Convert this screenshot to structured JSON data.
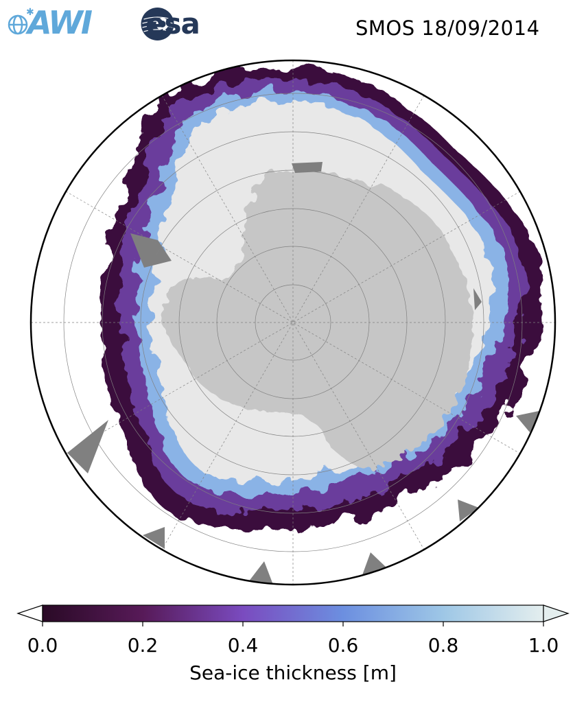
{
  "header": {
    "title": "SMOS 18/09/2014",
    "logo_awi_text": "AWI",
    "logo_esa_text": "esa"
  },
  "map": {
    "projection": "south-polar-stereographic",
    "colors": {
      "land": "#c6c6c6",
      "ice_shelf": "#7f7f7f",
      "thick_ice": "#e8e8e8",
      "outline": "#000000",
      "grid": "#808080"
    }
  },
  "colorbar": {
    "label": "Sea-ice thickness [m]",
    "ticks": [
      "0.0",
      "0.2",
      "0.4",
      "0.6",
      "0.8",
      "1.0"
    ],
    "min": 0.0,
    "max": 1.0,
    "extend": "both",
    "colormap_stops": [
      "#2a0a26",
      "#571a58",
      "#7a4bbf",
      "#6c8fe0",
      "#9ec7e6",
      "#e4eeee"
    ]
  }
}
